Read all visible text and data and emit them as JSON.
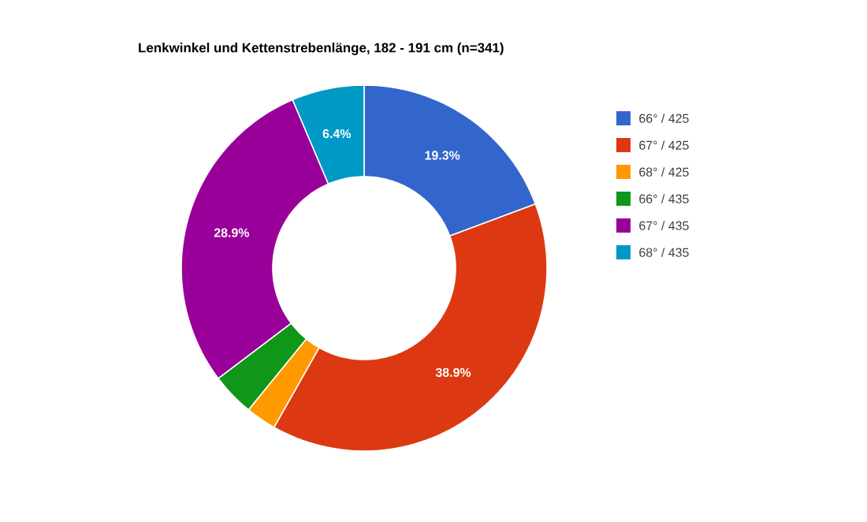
{
  "chart_data": {
    "type": "donut",
    "title": "Lenkwinkel und Kettenstrebenlänge, 182 - 191 cm (n=341)",
    "categories": [
      "66° / 425",
      "67° / 425",
      "68° / 425",
      "66° / 435",
      "67° / 435",
      "68° / 435"
    ],
    "values": [
      19.3,
      38.9,
      2.7,
      3.8,
      28.9,
      6.4
    ],
    "colors": [
      "#3366cc",
      "#dc3912",
      "#ff9900",
      "#109618",
      "#990099",
      "#0099c6"
    ],
    "value_labels": [
      "19.3%",
      "38.9%",
      null,
      null,
      "28.9%",
      "6.4%"
    ],
    "legend": "right"
  }
}
